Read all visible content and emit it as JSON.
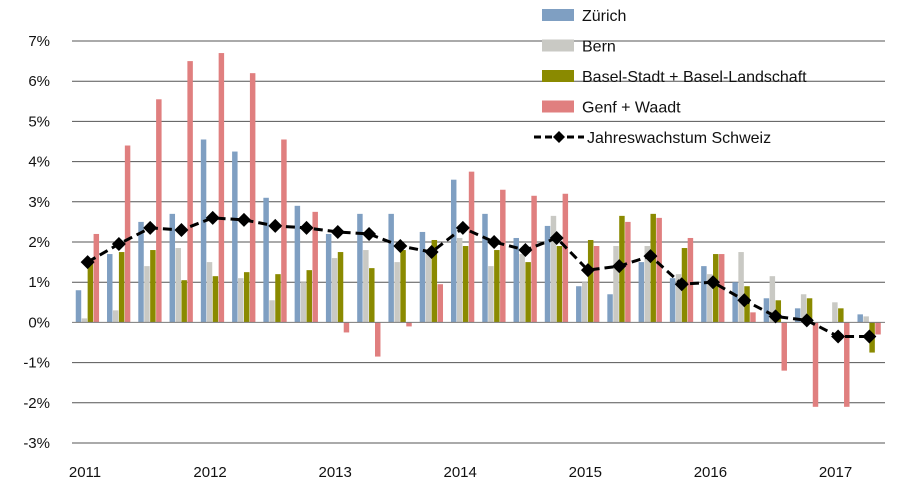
{
  "chart_data": {
    "type": "bar",
    "title": "",
    "xlabel": "",
    "ylabel": "",
    "ylim": [
      -3,
      7
    ],
    "y_ticks": [
      -3,
      -2,
      -1,
      0,
      1,
      2,
      3,
      4,
      5,
      6,
      7
    ],
    "y_tick_labels": [
      "-3%",
      "-2%",
      "-1%",
      "0%",
      "1%",
      "2%",
      "3%",
      "4%",
      "5%",
      "6%",
      "7%"
    ],
    "x_tick_labels": [
      "2011",
      "2012",
      "2013",
      "2014",
      "2015",
      "2016",
      "2017"
    ],
    "x_tick_positions": [
      0,
      4,
      8,
      12,
      16,
      20,
      24
    ],
    "categories": [
      "2011 Q1",
      "2011 Q2",
      "2011 Q3",
      "2011 Q4",
      "2012 Q1",
      "2012 Q2",
      "2012 Q3",
      "2012 Q4",
      "2013 Q1",
      "2013 Q2",
      "2013 Q3",
      "2013 Q4",
      "2014 Q1",
      "2014 Q2",
      "2014 Q3",
      "2014 Q4",
      "2015 Q1",
      "2015 Q2",
      "2015 Q3",
      "2015 Q4",
      "2016 Q1",
      "2016 Q2",
      "2016 Q3",
      "2016 Q4",
      "2017 Q1",
      "2017 Q2"
    ],
    "series": [
      {
        "name": "Zürich",
        "type": "bar",
        "color": "#7f9fc2",
        "values": [
          0.8,
          1.7,
          2.5,
          2.7,
          4.55,
          4.25,
          3.1,
          2.9,
          2.2,
          2.7,
          2.7,
          2.25,
          3.55,
          2.7,
          2.1,
          2.4,
          0.9,
          0.7,
          1.5,
          1.1,
          1.4,
          1.0,
          0.6,
          0.35,
          0.0,
          0.2
        ]
      },
      {
        "name": "Bern",
        "type": "bar",
        "color": "#c9c9c4",
        "values": [
          0.1,
          0.3,
          1.4,
          1.85,
          1.5,
          1.1,
          0.55,
          1.0,
          1.6,
          1.8,
          1.5,
          1.7,
          2.1,
          1.4,
          1.7,
          2.65,
          1.0,
          1.9,
          1.9,
          1.2,
          1.2,
          1.75,
          1.15,
          0.7,
          0.5,
          0.15
        ]
      },
      {
        "name": "Basel-Stadt + Basel-Landschaft",
        "type": "bar",
        "color": "#8a8a00",
        "values": [
          1.5,
          1.75,
          1.8,
          1.05,
          1.15,
          1.25,
          1.2,
          1.3,
          1.75,
          1.35,
          1.8,
          2.05,
          1.9,
          1.8,
          1.5,
          1.9,
          2.05,
          2.65,
          2.7,
          1.85,
          1.7,
          0.9,
          0.55,
          0.6,
          0.35,
          -0.75
        ]
      },
      {
        "name": "Genf + Waadt",
        "type": "bar",
        "color": "#e07f7f",
        "values": [
          2.2,
          4.4,
          5.55,
          6.5,
          6.7,
          6.2,
          4.55,
          2.75,
          -0.25,
          -0.85,
          -0.1,
          0.95,
          3.75,
          3.3,
          3.15,
          3.2,
          1.9,
          2.5,
          2.6,
          2.1,
          1.7,
          0.25,
          -1.2,
          -2.1,
          -2.1,
          -0.3
        ]
      },
      {
        "name": "Jahreswachstum Schweiz",
        "type": "line",
        "color": "#000000",
        "values": [
          1.5,
          1.95,
          2.35,
          2.3,
          2.6,
          2.55,
          2.4,
          2.35,
          2.25,
          2.2,
          1.9,
          1.75,
          2.35,
          2.0,
          1.8,
          2.1,
          1.3,
          1.4,
          1.65,
          0.95,
          1.0,
          0.55,
          0.15,
          0.05,
          -0.35,
          -0.35
        ]
      }
    ],
    "grid": true,
    "legend": "top-right"
  }
}
